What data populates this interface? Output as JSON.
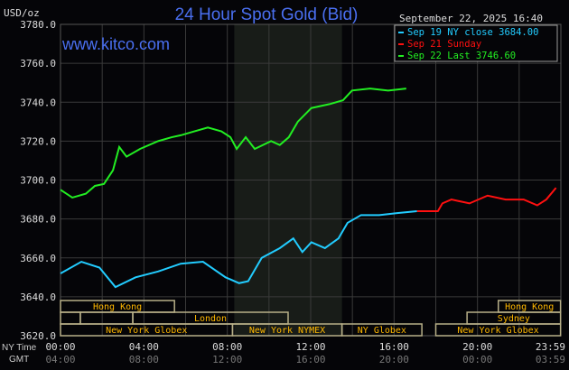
{
  "chart_data": {
    "type": "line",
    "title": "24 Hour Spot Gold (Bid)",
    "watermark": "www.kitco.com",
    "timestamp": "September 22, 2025 16:40",
    "ylabel": "USD/oz",
    "ylim": [
      3620,
      3780
    ],
    "yticks": [
      "3780.0",
      "3760.0",
      "3740.0",
      "3720.0",
      "3700.0",
      "3680.0",
      "3660.0",
      "3640.0",
      "3620.0"
    ],
    "x_row_labels": {
      "ny": "NY Time",
      "gmt": "GMT"
    },
    "xticks_ny": [
      "00:00",
      "04:00",
      "08:00",
      "12:00",
      "16:00",
      "20:00",
      "23:59"
    ],
    "xticks_gmt": [
      "04:00",
      "08:00",
      "12:00",
      "16:00",
      "20:00",
      "00:00",
      "03:59"
    ],
    "grid": true,
    "shaded_period": [
      "08:20",
      "13:30"
    ],
    "legend_position": "top-right",
    "series": [
      {
        "name": "Sep 19 NY close 3684.00",
        "color": "#22ccff",
        "points": [
          [
            "00:00",
            3652
          ],
          [
            "01:00",
            3658
          ],
          [
            "01:52",
            3655
          ],
          [
            "02:38",
            3645
          ],
          [
            "03:36",
            3650
          ],
          [
            "04:41",
            3653
          ],
          [
            "05:46",
            3657
          ],
          [
            "06:50",
            3658
          ],
          [
            "07:55",
            3650
          ],
          [
            "08:34",
            3647
          ],
          [
            "09:00",
            3648
          ],
          [
            "09:39",
            3660
          ],
          [
            "10:31",
            3665
          ],
          [
            "11:10",
            3670
          ],
          [
            "11:36",
            3663
          ],
          [
            "12:02",
            3668
          ],
          [
            "12:41",
            3665
          ],
          [
            "13:20",
            3670
          ],
          [
            "13:46",
            3678
          ],
          [
            "14:25",
            3682
          ],
          [
            "15:17",
            3682
          ],
          [
            "16:09",
            3683
          ],
          [
            "17:06",
            3684
          ]
        ]
      },
      {
        "name": "Sep 21 Sunday",
        "color": "#ff1010",
        "points": [
          [
            "17:06",
            3684
          ],
          [
            "18:06",
            3684
          ],
          [
            "18:19",
            3688
          ],
          [
            "18:45",
            3690
          ],
          [
            "19:37",
            3688
          ],
          [
            "20:29",
            3692
          ],
          [
            "21:21",
            3690
          ],
          [
            "22:13",
            3690
          ],
          [
            "22:52",
            3687
          ],
          [
            "23:18",
            3690
          ],
          [
            "23:46",
            3696
          ]
        ]
      },
      {
        "name": "Sep 22 Last 3746.60",
        "color": "#22ee22",
        "points": [
          [
            "00:00",
            3695
          ],
          [
            "00:34",
            3691
          ],
          [
            "01:13",
            3693
          ],
          [
            "01:39",
            3697
          ],
          [
            "02:05",
            3698
          ],
          [
            "02:31",
            3705
          ],
          [
            "02:49",
            3717
          ],
          [
            "03:10",
            3712
          ],
          [
            "03:49",
            3716
          ],
          [
            "04:41",
            3720
          ],
          [
            "05:20",
            3722
          ],
          [
            "05:46",
            3723
          ],
          [
            "06:25",
            3725
          ],
          [
            "07:04",
            3727
          ],
          [
            "07:43",
            3725
          ],
          [
            "08:09",
            3722
          ],
          [
            "08:27",
            3716
          ],
          [
            "08:53",
            3722
          ],
          [
            "09:19",
            3716
          ],
          [
            "10:06",
            3720
          ],
          [
            "10:31",
            3718
          ],
          [
            "10:57",
            3722
          ],
          [
            "11:23",
            3730
          ],
          [
            "12:02",
            3737
          ],
          [
            "12:54",
            3739
          ],
          [
            "13:33",
            3741
          ],
          [
            "13:59",
            3746
          ],
          [
            "14:51",
            3747
          ],
          [
            "15:43",
            3746
          ],
          [
            "16:35",
            3747
          ]
        ]
      }
    ],
    "sessions": [
      {
        "label": "Hong Kong",
        "row": 0,
        "start": "00:00",
        "end": "05:28"
      },
      {
        "label": "",
        "row": 1,
        "start": "00:00",
        "end": "00:57"
      },
      {
        "label": "",
        "row": 1,
        "start": "00:57",
        "end": "03:28"
      },
      {
        "label": "London",
        "row": 1,
        "start": "03:28",
        "end": "10:55"
      },
      {
        "label": "New York Globex",
        "row": 2,
        "start": "00:00",
        "end": "08:15"
      },
      {
        "label": "New York NYMEX",
        "row": 2,
        "start": "08:15",
        "end": "13:30"
      },
      {
        "label": "NY Globex",
        "row": 2,
        "start": "13:30",
        "end": "17:20"
      },
      {
        "label": "New York Globex",
        "row": 2,
        "start": "18:00",
        "end": "23:59"
      },
      {
        "label": "Sydney",
        "row": 1,
        "start": "19:30",
        "end": "23:59"
      },
      {
        "label": "Hong Kong",
        "row": 0,
        "start": "21:00",
        "end": "23:59"
      }
    ]
  }
}
